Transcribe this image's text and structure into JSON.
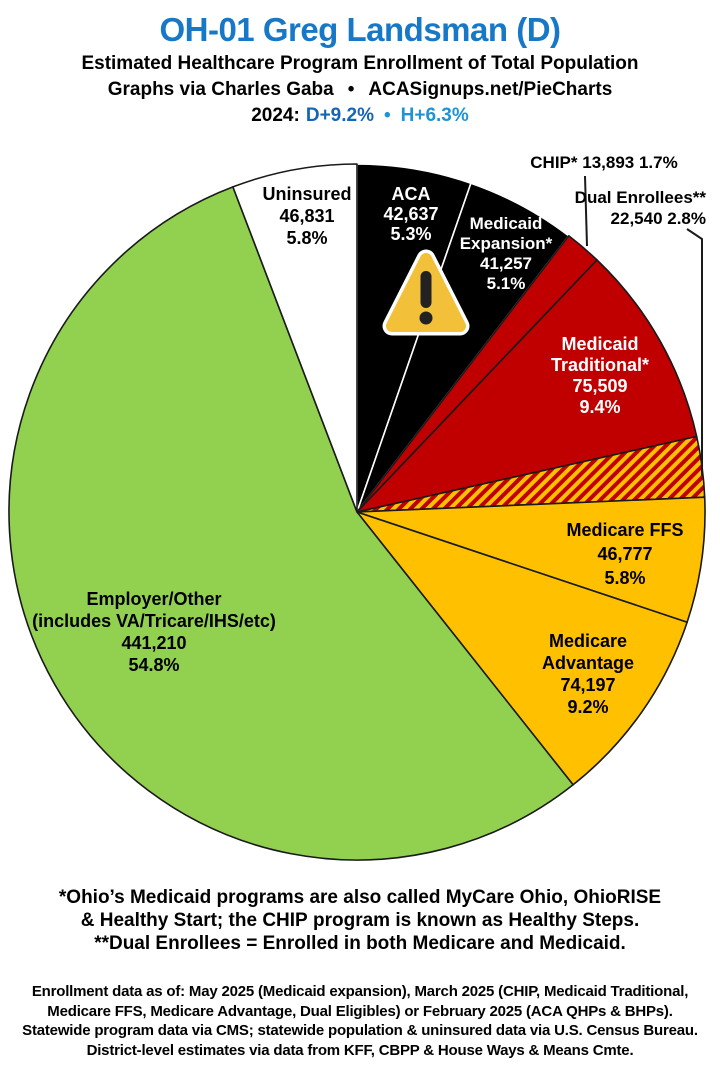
{
  "header": {
    "title": "OH-01 Greg Landsman (D)",
    "subtitle1": "Estimated Healthcare Program Enrollment of Total Population",
    "credit_left": "Graphs via Charles Gaba",
    "credit_bullet": "•",
    "credit_right": "ACASignups.net/PieCharts",
    "partisan": {
      "year_label": "2024:",
      "d_value": "D+9.2%",
      "bullet": "•",
      "h_value": "H+6.3%"
    }
  },
  "colors": {
    "title_blue": "#1778C8",
    "d_blue": "#1565B4",
    "h_blue": "#1E93D8",
    "pie_black": "#000000",
    "pie_red": "#C00000",
    "pie_yellow": "#FFC000",
    "pie_green": "#92D050",
    "pie_white": "#FFFFFF",
    "outline_dark": "#1A1A1A",
    "outline_light": "#FFFFFF",
    "warning_bg": "#F2C139",
    "warning_mark": "#222222"
  },
  "chart_data": {
    "type": "pie",
    "title": "Estimated Healthcare Program Enrollment of Total Population",
    "start_angle_deg_from_12_oclock": 0,
    "direction": "clockwise",
    "total_population_pct": 100,
    "slices": [
      {
        "label": "ACA",
        "value": 42637,
        "display_value": "42,637",
        "pct": 5.3,
        "display_pct": "5.3%",
        "color": "#000000",
        "text_color": "#FFFFFF",
        "stroke": "#FFFFFF",
        "hatch": false,
        "label_lines": [
          "ACA",
          "42,637",
          "5.3%"
        ]
      },
      {
        "label": "Medicaid Expansion*",
        "value": 41257,
        "display_value": "41,257",
        "pct": 5.1,
        "display_pct": "5.1%",
        "color": "#000000",
        "text_color": "#FFFFFF",
        "stroke": "#FFFFFF",
        "hatch": false,
        "label_lines": [
          "Medicaid",
          "Expansion*",
          "41,257",
          "5.1%"
        ]
      },
      {
        "label": "CHIP*",
        "value": 13893,
        "display_value": "13,893",
        "pct": 1.7,
        "display_pct": "1.7%",
        "color": "#C00000",
        "text_color": "#000000",
        "stroke": "#1A1A1A",
        "hatch": false,
        "callout": "CHIP* 13,893 1.7%"
      },
      {
        "label": "Medicaid Traditional*",
        "value": 75509,
        "display_value": "75,509",
        "pct": 9.4,
        "display_pct": "9.4%",
        "color": "#C00000",
        "text_color": "#FFFFFF",
        "stroke": "#1A1A1A",
        "hatch": false,
        "label_lines": [
          "Medicaid",
          "Traditional*",
          "75,509",
          "9.4%"
        ]
      },
      {
        "label": "Dual Enrollees**",
        "value": 22540,
        "display_value": "22,540",
        "pct": 2.8,
        "display_pct": "2.8%",
        "color": "#C00000",
        "hatch_color": "#FFC000",
        "text_color": "#000000",
        "stroke": "#1A1A1A",
        "hatch": true,
        "callout_lines": [
          "Dual Enrollees**",
          "22,540 2.8%"
        ]
      },
      {
        "label": "Medicare FFS",
        "value": 46777,
        "display_value": "46,777",
        "pct": 5.8,
        "display_pct": "5.8%",
        "color": "#FFC000",
        "text_color": "#000000",
        "stroke": "#1A1A1A",
        "hatch": false,
        "label_lines": [
          "Medicare FFS",
          "46,777",
          "5.8%"
        ]
      },
      {
        "label": "Medicare Advantage",
        "value": 74197,
        "display_value": "74,197",
        "pct": 9.2,
        "display_pct": "9.2%",
        "color": "#FFC000",
        "text_color": "#000000",
        "stroke": "#1A1A1A",
        "hatch": false,
        "label_lines": [
          "Medicare",
          "Advantage",
          "74,197",
          "9.2%"
        ]
      },
      {
        "label": "Employer/Other (includes VA/Tricare/IHS/etc)",
        "value": 441210,
        "display_value": "441,210",
        "pct": 54.8,
        "display_pct": "54.8%",
        "color": "#92D050",
        "text_color": "#000000",
        "stroke": "#1A1A1A",
        "hatch": false,
        "label_lines": [
          "Employer/Other",
          "(includes VA/Tricare/IHS/etc)",
          "441,210",
          "54.8%"
        ]
      },
      {
        "label": "Uninsured",
        "value": 46831,
        "display_value": "46,831",
        "pct": 5.8,
        "display_pct": "5.8%",
        "color": "#FFFFFF",
        "text_color": "#000000",
        "stroke": "#1A1A1A",
        "hatch": false,
        "label_lines": [
          "Uninsured",
          "46,831",
          "5.8%"
        ]
      }
    ]
  },
  "footnote_medicaid": {
    "line1": [
      {
        "t": "*Ohio’s Medicaid programs are also called ",
        "b": false
      },
      {
        "t": "MyCare Ohio, OhioRISE",
        "b": true
      }
    ],
    "line2": [
      {
        "t": "& ",
        "b": false
      },
      {
        "t": "Healthy Start",
        "b": true
      },
      {
        "t": "; the ",
        "b": false
      },
      {
        "t": "CHIP",
        "b": true
      },
      {
        "t": " program is known as ",
        "b": false
      },
      {
        "t": "Healthy Steps",
        "b": true
      },
      {
        "t": ".",
        "b": false
      }
    ],
    "line3": [
      {
        "t": "**Dual Enrollees",
        "b": true
      },
      {
        "t": " = Enrolled in ",
        "b": false
      },
      {
        "t": "both",
        "b": true
      },
      {
        "t": " Medicare ",
        "b": false
      },
      {
        "t": "and",
        "b": true
      },
      {
        "t": " Medicaid.",
        "b": false
      }
    ]
  },
  "source_note": {
    "lines": [
      "Enrollment data as of: May 2025 (Medicaid expansion), March 2025 (CHIP, Medicaid Traditional,",
      "Medicare FFS, Medicare Advantage, Dual Eligibles) or February 2025 (ACA QHPs & BHPs).",
      "Statewide program data via CMS; statewide population & uninsured data via U.S. Census Bureau.",
      "District-level estimates via data from KFF, CBPP & House Ways & Means Cmte."
    ]
  }
}
